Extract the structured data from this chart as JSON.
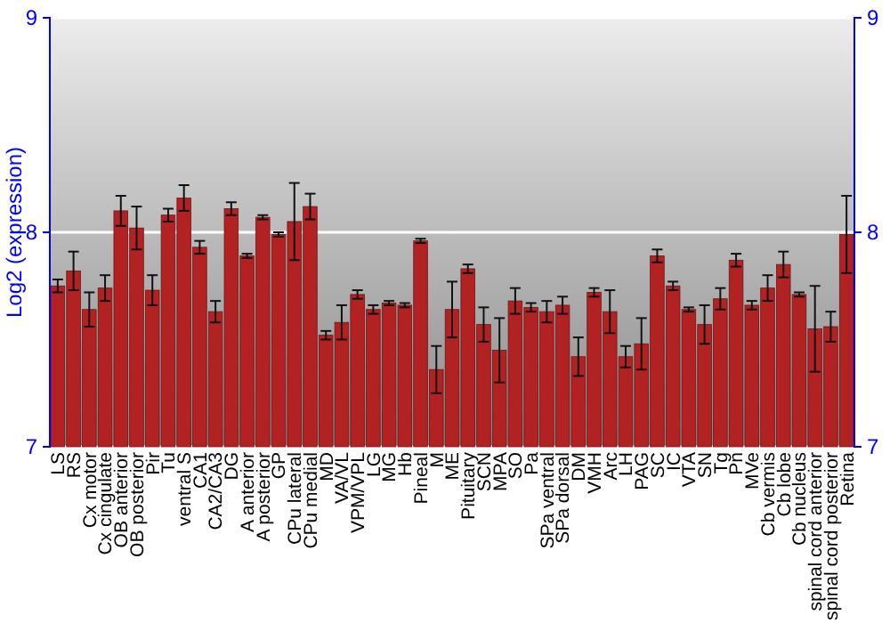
{
  "chart_data": {
    "type": "bar",
    "ylabel": "Log2 (expression)",
    "categories": [
      "LS",
      "RS",
      "Cx motor",
      "Cx cingulate",
      "OB anterior",
      "OB posterior",
      "Pir",
      "Tu",
      "ventral S",
      "CA1",
      "CA2/CA3",
      "DG",
      "A anterior",
      "A posterior",
      "GP",
      "CPu lateral",
      "CPu medial",
      "MD",
      "VA/VL",
      "VPM/VPL",
      "LG",
      "MG",
      "Hb",
      "Pineal",
      "M",
      "ME",
      "Pituitary",
      "SCN",
      "MPA",
      "SO",
      "Pa",
      "SPa ventral",
      "SPa dorsal",
      "DM",
      "VMH",
      "Arc",
      "LH",
      "PAG",
      "SC",
      "IC",
      "VTA",
      "SN",
      "Tg",
      "Pn",
      "MVe",
      "Cb vermis",
      "Cb lobe",
      "Cb nucleus",
      "spinal cord anterior",
      "spinal cord posterior",
      "Retina"
    ],
    "values": [
      7.75,
      7.82,
      7.64,
      7.74,
      8.1,
      8.02,
      7.73,
      8.08,
      8.16,
      7.93,
      7.63,
      8.11,
      7.89,
      8.07,
      7.99,
      8.05,
      8.12,
      7.52,
      7.58,
      7.71,
      7.64,
      7.67,
      7.66,
      7.96,
      7.36,
      7.64,
      7.83,
      7.57,
      7.45,
      7.68,
      7.65,
      7.63,
      7.66,
      7.42,
      7.72,
      7.63,
      7.42,
      7.48,
      7.89,
      7.75,
      7.64,
      7.57,
      7.69,
      7.87,
      7.66,
      7.74,
      7.85,
      7.71,
      7.55,
      7.56,
      7.99
    ],
    "errors": [
      0.03,
      0.09,
      0.08,
      0.06,
      0.07,
      0.1,
      0.07,
      0.03,
      0.06,
      0.03,
      0.05,
      0.03,
      0.01,
      0.01,
      0.01,
      0.18,
      0.06,
      0.02,
      0.08,
      0.02,
      0.02,
      0.01,
      0.01,
      0.01,
      0.11,
      0.13,
      0.02,
      0.08,
      0.15,
      0.06,
      0.02,
      0.05,
      0.04,
      0.09,
      0.02,
      0.1,
      0.05,
      0.12,
      0.03,
      0.02,
      0.01,
      0.09,
      0.05,
      0.03,
      0.02,
      0.06,
      0.06,
      0.01,
      0.2,
      0.07,
      0.18
    ],
    "color": "#b22222",
    "ylim": [
      7,
      9
    ],
    "yticks": [
      7,
      8,
      9
    ],
    "y2lim": [
      7,
      9
    ],
    "y2ticks": [
      7,
      8,
      9
    ],
    "grid": "y"
  }
}
